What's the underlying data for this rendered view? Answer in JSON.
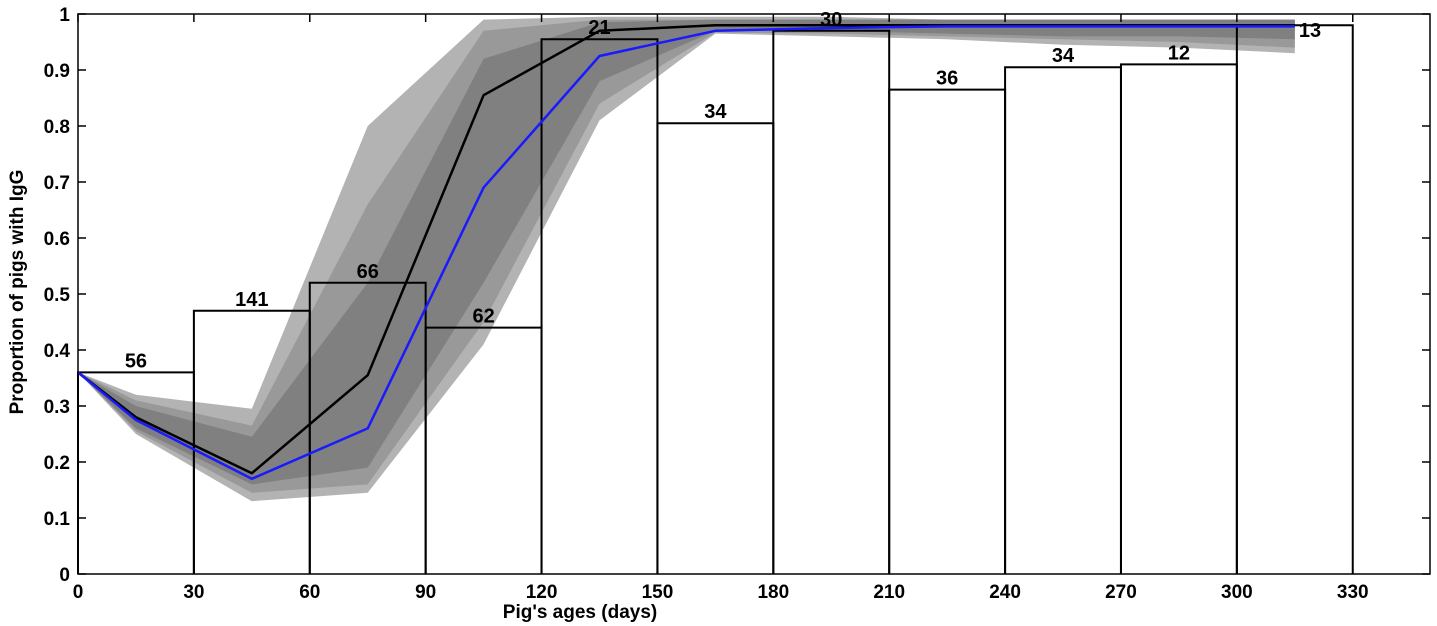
{
  "chart_data": {
    "type": "bar",
    "xlabel": "Pig's ages (days)",
    "ylabel": "Proportion of pigs with IgG",
    "xlim": [
      0,
      350
    ],
    "ylim": [
      0,
      1
    ],
    "x_ticks": [
      0,
      30,
      60,
      90,
      120,
      150,
      180,
      210,
      240,
      270,
      300,
      330
    ],
    "y_ticks": [
      0,
      0.1,
      0.2,
      0.3,
      0.4,
      0.5,
      0.6,
      0.7,
      0.8,
      0.9,
      1
    ],
    "y_tick_labels": [
      "0",
      "0.1",
      "0.2",
      "0.3",
      "0.4",
      "0.5",
      "0.6",
      "0.7",
      "0.8",
      "0.9",
      "1"
    ],
    "bars": [
      {
        "x0": 0,
        "x1": 30,
        "value": 0.36,
        "count": "56"
      },
      {
        "x0": 30,
        "x1": 60,
        "value": 0.47,
        "count": "141"
      },
      {
        "x0": 60,
        "x1": 90,
        "value": 0.52,
        "count": "66"
      },
      {
        "x0": 90,
        "x1": 120,
        "value": 0.44,
        "count": "62"
      },
      {
        "x0": 120,
        "x1": 150,
        "value": 0.955,
        "count": "21"
      },
      {
        "x0": 150,
        "x1": 180,
        "value": 0.805,
        "count": "34"
      },
      {
        "x0": 180,
        "x1": 210,
        "value": 0.97,
        "count": "30"
      },
      {
        "x0": 210,
        "x1": 240,
        "value": 0.865,
        "count": "36"
      },
      {
        "x0": 240,
        "x1": 270,
        "value": 0.905,
        "count": "34"
      },
      {
        "x0": 270,
        "x1": 300,
        "value": 0.91,
        "count": "12"
      },
      {
        "x0": 300,
        "x1": 330,
        "value": 0.98,
        "count": "13"
      }
    ],
    "series": [
      {
        "color": "#000000",
        "x": [
          0,
          15,
          45,
          75,
          105,
          135,
          165,
          195,
          225,
          255,
          285,
          315
        ],
        "values": [
          0.36,
          0.28,
          0.18,
          0.355,
          0.855,
          0.97,
          0.98,
          0.98,
          0.98,
          0.98,
          0.98,
          0.98
        ]
      },
      {
        "color": "#1a1aff",
        "x": [
          0,
          15,
          45,
          75,
          105,
          135,
          165,
          195,
          225,
          255,
          285,
          315
        ],
        "values": [
          0.36,
          0.275,
          0.17,
          0.26,
          0.69,
          0.925,
          0.97,
          0.975,
          0.978,
          0.978,
          0.978,
          0.978
        ]
      }
    ],
    "bands": [
      {
        "color": "#b3b3b3",
        "x": [
          0,
          15,
          45,
          75,
          105,
          135,
          165,
          195,
          225,
          255,
          285,
          315
        ],
        "upper": [
          0.36,
          0.32,
          0.295,
          0.8,
          0.99,
          0.995,
          0.995,
          0.995,
          0.99,
          0.99,
          0.99,
          0.99
        ],
        "lower": [
          0.36,
          0.25,
          0.13,
          0.145,
          0.41,
          0.81,
          0.965,
          0.96,
          0.955,
          0.945,
          0.94,
          0.93
        ]
      },
      {
        "color": "#999999",
        "x": [
          0,
          15,
          45,
          75,
          105,
          135,
          165,
          195,
          225,
          255,
          285,
          315
        ],
        "upper": [
          0.36,
          0.31,
          0.265,
          0.66,
          0.97,
          0.99,
          0.99,
          0.99,
          0.99,
          0.99,
          0.99,
          0.99
        ],
        "lower": [
          0.36,
          0.255,
          0.145,
          0.16,
          0.45,
          0.84,
          0.967,
          0.965,
          0.96,
          0.955,
          0.95,
          0.94
        ]
      },
      {
        "color": "#808080",
        "x": [
          0,
          15,
          45,
          75,
          105,
          135,
          165,
          195,
          225,
          255,
          285,
          315
        ],
        "upper": [
          0.36,
          0.3,
          0.245,
          0.52,
          0.92,
          0.985,
          0.99,
          0.99,
          0.99,
          0.99,
          0.99,
          0.99
        ],
        "lower": [
          0.36,
          0.26,
          0.16,
          0.19,
          0.52,
          0.88,
          0.97,
          0.97,
          0.965,
          0.96,
          0.96,
          0.955
        ]
      }
    ]
  }
}
